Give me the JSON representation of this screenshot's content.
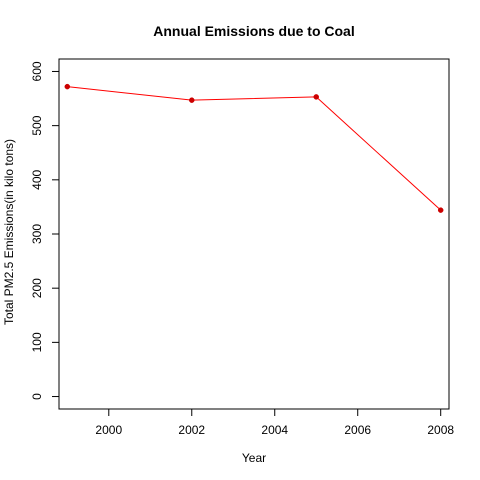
{
  "chart_data": {
    "type": "line",
    "title": "Annual Emissions due to Coal",
    "xlabel": "Year",
    "ylabel": "Total PM2.5 Emissions(in kilo tons)",
    "x": [
      1999,
      2002,
      2005,
      2008
    ],
    "series": [
      {
        "values": [
          572,
          547,
          553,
          344
        ],
        "color": "#ff0000",
        "point_color": "#cc0000"
      }
    ],
    "xlim": [
      1998.8,
      2008.2
    ],
    "ylim": [
      -23,
      623
    ],
    "xticks": [
      2000,
      2002,
      2004,
      2006,
      2008
    ],
    "yticks": [
      0,
      100,
      200,
      300,
      400,
      500,
      600
    ],
    "grid": false,
    "legend": "none"
  }
}
